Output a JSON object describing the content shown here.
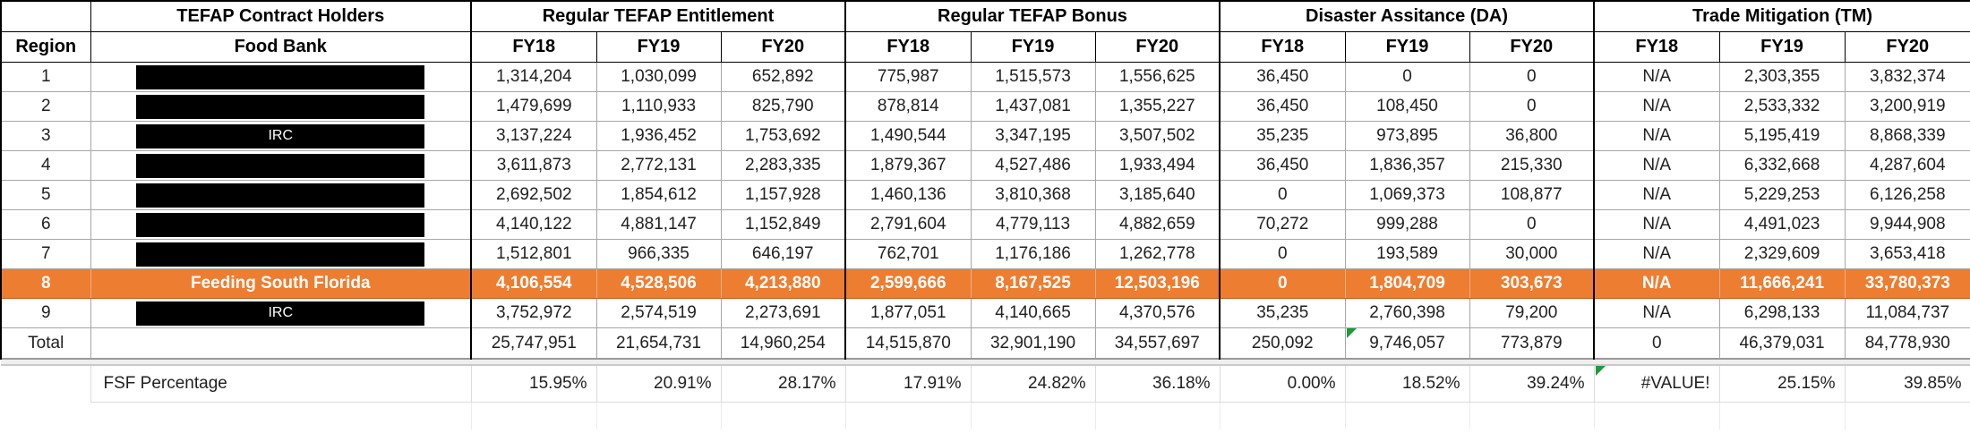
{
  "table": {
    "group_headers": [
      {
        "label": ""
      },
      {
        "label": "TEFAP Contract Holders"
      },
      {
        "label": "Regular TEFAP Entitlement"
      },
      {
        "label": "Regular TEFAP Bonus"
      },
      {
        "label": "Disaster Assitance (DA)"
      },
      {
        "label": "Trade Mitigation (TM)"
      }
    ],
    "column_headers": [
      "Region",
      "Food Bank",
      "FY18",
      "FY19",
      "FY20",
      "FY18",
      "FY19",
      "FY20",
      "FY18",
      "FY19",
      "FY20",
      "FY18",
      "FY19",
      "FY20"
    ],
    "rows": [
      {
        "region": "1",
        "food_bank": "",
        "redacted": true,
        "redaction_label": "",
        "values": [
          "1,314,204",
          "1,030,099",
          "652,892",
          "775,987",
          "1,515,573",
          "1,556,625",
          "36,450",
          "0",
          "0",
          "N/A",
          "2,303,355",
          "3,832,374"
        ]
      },
      {
        "region": "2",
        "food_bank": "",
        "redacted": true,
        "redaction_label": "",
        "values": [
          "1,479,699",
          "1,110,933",
          "825,790",
          "878,814",
          "1,437,081",
          "1,355,227",
          "36,450",
          "108,450",
          "0",
          "N/A",
          "2,533,332",
          "3,200,919"
        ]
      },
      {
        "region": "3",
        "food_bank": "",
        "redacted": true,
        "redaction_label": "IRC",
        "values": [
          "3,137,224",
          "1,936,452",
          "1,753,692",
          "1,490,544",
          "3,347,195",
          "3,507,502",
          "35,235",
          "973,895",
          "36,800",
          "N/A",
          "5,195,419",
          "8,868,339"
        ]
      },
      {
        "region": "4",
        "food_bank": "",
        "redacted": true,
        "redaction_label": "",
        "values": [
          "3,611,873",
          "2,772,131",
          "2,283,335",
          "1,879,367",
          "4,527,486",
          "1,933,494",
          "36,450",
          "1,836,357",
          "215,330",
          "N/A",
          "6,332,668",
          "4,287,604"
        ]
      },
      {
        "region": "5",
        "food_bank": "",
        "redacted": true,
        "redaction_label": "",
        "values": [
          "2,692,502",
          "1,854,612",
          "1,157,928",
          "1,460,136",
          "3,810,368",
          "3,185,640",
          "0",
          "1,069,373",
          "108,877",
          "N/A",
          "5,229,253",
          "6,126,258"
        ]
      },
      {
        "region": "6",
        "food_bank": "",
        "redacted": true,
        "redaction_label": "",
        "values": [
          "4,140,122",
          "4,881,147",
          "1,152,849",
          "2,791,604",
          "4,779,113",
          "4,882,659",
          "70,272",
          "999,288",
          "0",
          "N/A",
          "4,491,023",
          "9,944,908"
        ]
      },
      {
        "region": "7",
        "food_bank": "",
        "redacted": true,
        "redaction_label": "",
        "values": [
          "1,512,801",
          "966,335",
          "646,197",
          "762,701",
          "1,176,186",
          "1,262,778",
          "0",
          "193,589",
          "30,000",
          "N/A",
          "2,329,609",
          "3,653,418"
        ]
      },
      {
        "region": "8",
        "food_bank": "Feeding South Florida",
        "redacted": false,
        "highlight": true,
        "values": [
          "4,106,554",
          "4,528,506",
          "4,213,880",
          "2,599,666",
          "8,167,525",
          "12,503,196",
          "0",
          "1,804,709",
          "303,673",
          "N/A",
          "11,666,241",
          "33,780,373"
        ]
      },
      {
        "region": "9",
        "food_bank": "",
        "redacted": true,
        "redaction_label": "IRC",
        "values": [
          "3,752,972",
          "2,574,519",
          "2,273,691",
          "1,877,051",
          "4,140,665",
          "4,370,576",
          "35,235",
          "2,760,398",
          "79,200",
          "N/A",
          "6,298,133",
          "11,084,737"
        ]
      }
    ],
    "total_row": {
      "region": "Total",
      "values": [
        "25,747,951",
        "21,654,731",
        "14,960,254",
        "14,515,870",
        "32,901,190",
        "34,557,697",
        "250,092",
        "9,746,057",
        "773,879",
        "0",
        "46,379,031",
        "84,778,930"
      ],
      "flag_indices": [
        7
      ]
    },
    "fsf_row": {
      "label": "FSF Percentage",
      "values": [
        "15.95%",
        "20.91%",
        "28.17%",
        "17.91%",
        "24.82%",
        "36.18%",
        "0.00%",
        "18.52%",
        "39.24%",
        "#VALUE!",
        "25.15%",
        "39.85%"
      ],
      "flag_indices": [
        9
      ]
    },
    "colors": {
      "highlight_orange": "#ED7D31",
      "redaction_black": "#000000",
      "flag_green": "#1E9A3C"
    }
  }
}
